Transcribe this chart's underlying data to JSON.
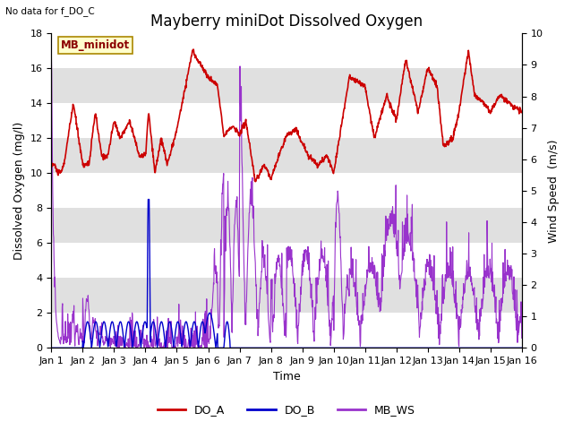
{
  "title": "Mayberry miniDot Dissolved Oxygen",
  "subtitle": "No data for f_DO_C",
  "ylabel_left": "Dissolved Oxygen (mg/l)",
  "ylabel_right": "Wind Speed  (m/s)",
  "xlabel": "Time",
  "ylim_left": [
    0,
    18
  ],
  "ylim_right": [
    0.0,
    10.0
  ],
  "yticks_left": [
    0,
    2,
    4,
    6,
    8,
    10,
    12,
    14,
    16,
    18
  ],
  "yticks_right": [
    0.0,
    1.0,
    2.0,
    3.0,
    4.0,
    5.0,
    6.0,
    7.0,
    8.0,
    9.0,
    10.0
  ],
  "xtick_labels": [
    "Jan 1",
    "Jan 2",
    "Jan 3",
    "Jan 4",
    "Jan 5",
    "Jan 6",
    "Jan 7",
    "Jan 8",
    "Jan 9",
    "Jan 10",
    "Jan 11",
    "Jan 12",
    "Jan 13",
    "Jan 14",
    "Jan 15",
    "Jan 16"
  ],
  "legend_labels": [
    "DO_A",
    "DO_B",
    "MB_WS"
  ],
  "legend_colors": [
    "#cc0000",
    "#0000cc",
    "#9933cc"
  ],
  "line_colors": {
    "DO_A": "#cc0000",
    "DO_B": "#0000cc",
    "MB_WS": "#9933cc"
  },
  "box_label": "MB_minidot",
  "box_facecolor": "#ffffcc",
  "box_edgecolor": "#aa8800",
  "background_color": "#ffffff",
  "band_color": "#e0e0e0",
  "title_fontsize": 12,
  "axis_fontsize": 9,
  "tick_fontsize": 8
}
